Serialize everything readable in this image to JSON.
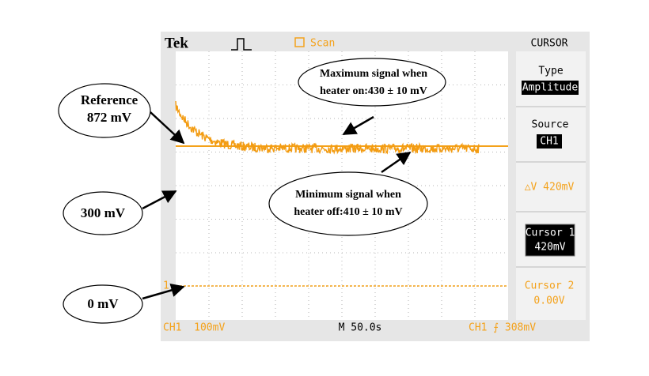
{
  "top_bar": {
    "brand": "Tek",
    "mode": "Scan"
  },
  "menu": {
    "title": "CURSOR",
    "items": [
      {
        "label": "Type",
        "value": "Amplitude"
      },
      {
        "label": "Source",
        "value": "CH1"
      },
      {
        "value": "△V 420mV"
      },
      {
        "label": "Cursor 1",
        "value": "420mV"
      },
      {
        "label": "Cursor 2",
        "value": "0.00V"
      }
    ]
  },
  "channel_marker": "1",
  "bottom_bar": {
    "channel": "CH1  100mV",
    "timebase": "M 50.0s",
    "trigger": "CH1 ⨍ 308mV"
  },
  "callouts": [
    {
      "lines": [
        "Reference",
        "872 mV"
      ]
    },
    {
      "lines": [
        "300 mV"
      ]
    },
    {
      "lines": [
        "0 mV"
      ]
    },
    {
      "lines": [
        "Maximum signal when",
        "heater on:430 ± 10 mV"
      ]
    },
    {
      "lines": [
        "Minimum signal when",
        "heater off:410 ± 10 mV"
      ]
    }
  ]
}
